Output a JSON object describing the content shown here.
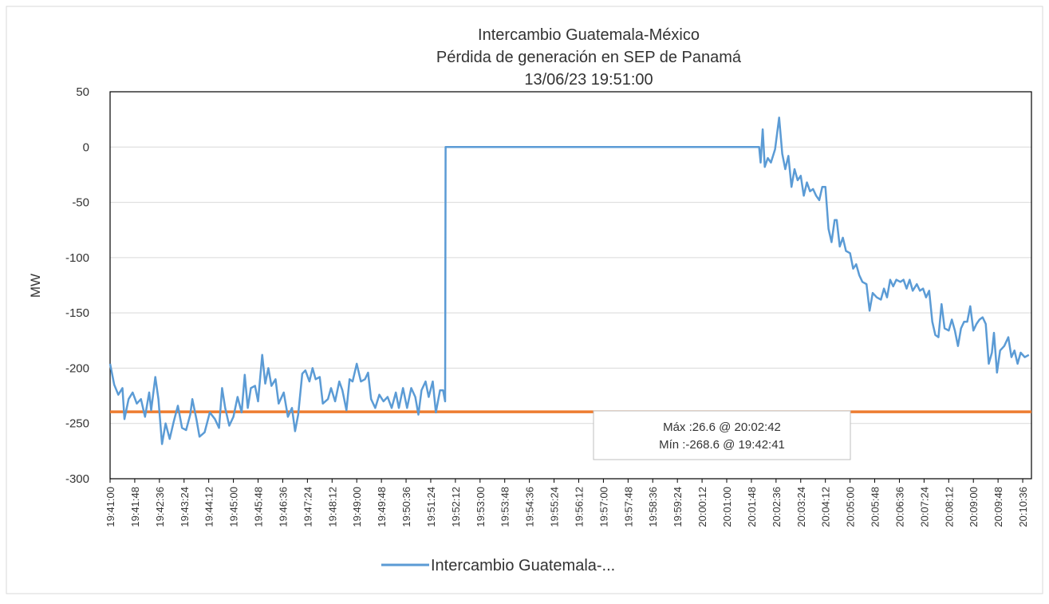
{
  "chart_data": {
    "type": "line",
    "title": [
      "Intercambio Guatemala-México",
      "Pérdida de generación en SEP de Panamá",
      "13/06/23 19:51:00"
    ],
    "y_label": "MW",
    "ylim": [
      -300,
      50
    ],
    "yticks": [
      -300,
      -250,
      -200,
      -150,
      -100,
      -50,
      0,
      50
    ],
    "grid": true,
    "xlim": [
      "19:41:00",
      "20:10:53"
    ],
    "xticks": [
      "19:41:00",
      "19:41:48",
      "19:42:36",
      "19:43:24",
      "19:44:12",
      "19:45:00",
      "19:45:48",
      "19:46:36",
      "19:47:24",
      "19:48:12",
      "19:49:00",
      "19:49:48",
      "19:50:36",
      "19:51:24",
      "19:52:12",
      "19:53:00",
      "19:53:48",
      "19:54:36",
      "19:55:24",
      "19:56:12",
      "19:57:00",
      "19:57:48",
      "19:58:36",
      "19:59:24",
      "20:00:12",
      "20:01:00",
      "20:01:48",
      "20:02:36",
      "20:03:24",
      "20:04:12",
      "20:05:00",
      "20:05:48",
      "20:06:36",
      "20:07:24",
      "20:08:12",
      "20:09:00",
      "20:09:48",
      "20:10:36"
    ],
    "x": [
      "19:41:00",
      "19:41:08",
      "19:41:16",
      "19:41:24",
      "19:41:28",
      "19:41:36",
      "19:41:44",
      "19:41:52",
      "19:42:00",
      "19:42:08",
      "19:42:16",
      "19:42:20",
      "19:42:28",
      "19:42:34",
      "19:42:41",
      "19:42:48",
      "19:42:56",
      "19:43:04",
      "19:43:12",
      "19:43:20",
      "19:43:28",
      "19:43:36",
      "19:43:40",
      "19:43:48",
      "19:43:54",
      "19:44:04",
      "19:44:14",
      "19:44:24",
      "19:44:32",
      "19:44:38",
      "19:44:44",
      "19:44:52",
      "19:45:00",
      "19:45:08",
      "19:45:16",
      "19:45:22",
      "19:45:28",
      "19:45:34",
      "19:45:42",
      "19:45:48",
      "19:45:56",
      "19:46:02",
      "19:46:08",
      "19:46:14",
      "19:46:22",
      "19:46:28",
      "19:46:38",
      "19:46:46",
      "19:46:54",
      "19:47:00",
      "19:47:06",
      "19:47:14",
      "19:47:20",
      "19:47:28",
      "19:47:34",
      "19:47:40",
      "19:47:48",
      "19:47:54",
      "19:48:04",
      "19:48:10",
      "19:48:18",
      "19:48:26",
      "19:48:32",
      "19:48:40",
      "19:48:46",
      "19:48:52",
      "19:49:00",
      "19:49:08",
      "19:49:16",
      "19:49:22",
      "19:49:28",
      "19:49:36",
      "19:49:44",
      "19:49:52",
      "19:50:00",
      "19:50:08",
      "19:50:16",
      "19:50:22",
      "19:50:30",
      "19:50:38",
      "19:50:46",
      "19:50:54",
      "19:51:00",
      "19:51:06",
      "19:51:14",
      "19:51:20",
      "19:51:28",
      "19:51:34",
      "19:51:42",
      "19:51:48",
      "19:51:52",
      "19:51:53",
      "20:02:03",
      "20:02:06",
      "20:02:10",
      "20:02:14",
      "20:02:20",
      "20:02:26",
      "20:02:34",
      "20:02:42",
      "20:02:48",
      "20:02:54",
      "20:03:00",
      "20:03:06",
      "20:03:12",
      "20:03:18",
      "20:03:24",
      "20:03:30",
      "20:03:36",
      "20:03:42",
      "20:03:48",
      "20:03:54",
      "20:04:00",
      "20:04:06",
      "20:04:12",
      "20:04:18",
      "20:04:24",
      "20:04:30",
      "20:04:34",
      "20:04:40",
      "20:04:46",
      "20:04:52",
      "20:05:00",
      "20:05:06",
      "20:05:12",
      "20:05:18",
      "20:05:24",
      "20:05:32",
      "20:05:38",
      "20:05:44",
      "20:05:52",
      "20:06:00",
      "20:06:06",
      "20:06:12",
      "20:06:18",
      "20:06:24",
      "20:06:30",
      "20:06:38",
      "20:06:44",
      "20:06:50",
      "20:06:56",
      "20:07:02",
      "20:07:10",
      "20:07:16",
      "20:07:22",
      "20:07:28",
      "20:07:34",
      "20:07:40",
      "20:07:46",
      "20:07:52",
      "20:07:58",
      "20:08:04",
      "20:08:12",
      "20:08:18",
      "20:08:24",
      "20:08:30",
      "20:08:36",
      "20:08:42",
      "20:08:48",
      "20:08:54",
      "20:09:00",
      "20:09:06",
      "20:09:12",
      "20:09:18",
      "20:09:24",
      "20:09:30",
      "20:09:36",
      "20:09:40",
      "20:09:46",
      "20:09:52",
      "20:10:00",
      "20:10:08",
      "20:10:14",
      "20:10:20",
      "20:10:26",
      "20:10:32",
      "20:10:40",
      "20:10:48"
    ],
    "series": [
      {
        "name": "Intercambio Guatemala-...",
        "color": "#5b9bd5",
        "values": [
          -196,
          -215,
          -224,
          -218,
          -246,
          -228,
          -222,
          -232,
          -228,
          -244,
          -222,
          -238,
          -208,
          -228,
          -268.6,
          -250,
          -264,
          -248,
          -234,
          -254,
          -256,
          -242,
          -228,
          -246,
          -262,
          -258,
          -240,
          -246,
          -254,
          -218,
          -236,
          -252,
          -244,
          -226,
          -240,
          -206,
          -236,
          -218,
          -216,
          -230,
          -188,
          -214,
          -200,
          -216,
          -210,
          -232,
          -222,
          -244,
          -236,
          -257,
          -242,
          -205,
          -202,
          -212,
          -200,
          -210,
          -208,
          -232,
          -228,
          -218,
          -230,
          -212,
          -220,
          -238,
          -210,
          -212,
          -196,
          -212,
          -210,
          -204,
          -228,
          -236,
          -224,
          -230,
          -226,
          -236,
          -222,
          -236,
          -218,
          -236,
          -218,
          -226,
          -242,
          -220,
          -212,
          -226,
          -212,
          -240,
          -220,
          -220,
          -230,
          0,
          0,
          -14,
          16,
          -18,
          -10,
          -14,
          -2,
          26.6,
          -6,
          -20,
          -8,
          -36,
          -20,
          -30,
          -26,
          -44,
          -32,
          -40,
          -38,
          -44,
          -48,
          -36,
          -36,
          -74,
          -86,
          -66,
          -66,
          -90,
          -82,
          -94,
          -96,
          -110,
          -106,
          -116,
          -122,
          -124,
          -148,
          -132,
          -136,
          -138,
          -128,
          -136,
          -120,
          -126,
          -120,
          -122,
          -120,
          -128,
          -120,
          -130,
          -124,
          -130,
          -128,
          -136,
          -130,
          -158,
          -170,
          -172,
          -142,
          -164,
          -166,
          -156,
          -166,
          -180,
          -164,
          -158,
          -158,
          -144,
          -166,
          -160,
          -156,
          -154,
          -160,
          -196,
          -186,
          -168,
          -204,
          -184,
          -180,
          -172,
          -190,
          -184,
          -196,
          -186,
          -190,
          -188
        ]
      }
    ],
    "reference_line": {
      "value": -239.5,
      "color": "#ed7d31"
    },
    "annotation": [
      "Máx :26.6 @ 20:02:42",
      "Mín :-268.6 @ 19:42:41"
    ]
  }
}
